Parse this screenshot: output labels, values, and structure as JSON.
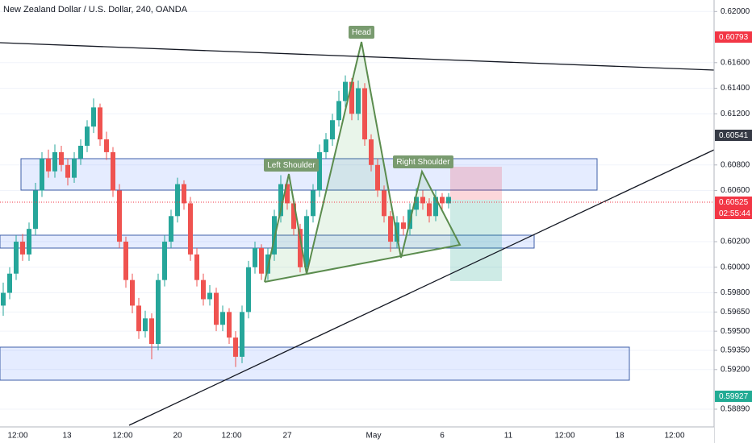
{
  "chart_data": {
    "type": "candlestick",
    "title": "New Zealand Dollar / U.S. Dollar, 240, OANDA",
    "annotations": [
      "Head",
      "Left Shoulder",
      "Right Shoulder"
    ],
    "ylim": [
      0.5872,
      0.6209
    ],
    "yticks": [
      {
        "value": 0.62,
        "label": "0.62000"
      },
      {
        "value": 0.616,
        "label": "0.61600"
      },
      {
        "value": 0.614,
        "label": "0.61400"
      },
      {
        "value": 0.612,
        "label": "0.61200"
      },
      {
        "value": 0.608,
        "label": "0.60800"
      },
      {
        "value": 0.606,
        "label": "0.60600"
      },
      {
        "value": 0.602,
        "label": "0.60200"
      },
      {
        "value": 0.6,
        "label": "0.60000"
      },
      {
        "value": 0.598,
        "label": "0.59800"
      },
      {
        "value": 0.5965,
        "label": "0.59650"
      },
      {
        "value": 0.595,
        "label": "0.59500"
      },
      {
        "value": 0.5935,
        "label": "0.59350"
      },
      {
        "value": 0.592,
        "label": "0.59200"
      },
      {
        "value": 0.5889,
        "label": "0.58890"
      }
    ],
    "grid": true,
    "price_tags": [
      {
        "label": "0.60793",
        "color": "#f23645"
      },
      {
        "label": "0.60541",
        "color": "#363a45"
      },
      {
        "label": "0.60525",
        "color": "#f23645"
      },
      {
        "label": "02:55:44",
        "color": "#f23645"
      },
      {
        "label": "0.59927",
        "color": "#22ab94"
      }
    ],
    "x_labels": [
      "12:00",
      "13",
      "12:00",
      "20",
      "12:00",
      "27",
      "May",
      "6",
      "11",
      "12:00",
      "18",
      "12:00"
    ],
    "up_color": "#26a69a",
    "down_color": "#ef5350",
    "candles": [
      [
        0.597,
        0.5988,
        0.5962,
        0.598
      ],
      [
        0.598,
        0.6,
        0.5975,
        0.5995
      ],
      [
        0.5995,
        0.6025,
        0.599,
        0.602
      ],
      [
        0.602,
        0.6026,
        0.6005,
        0.601
      ],
      [
        0.601,
        0.6035,
        0.6005,
        0.603
      ],
      [
        0.603,
        0.6066,
        0.6025,
        0.606
      ],
      [
        0.606,
        0.609,
        0.6055,
        0.6085
      ],
      [
        0.6085,
        0.6092,
        0.607,
        0.6075
      ],
      [
        0.6075,
        0.6096,
        0.607,
        0.609
      ],
      [
        0.609,
        0.6095,
        0.6075,
        0.608
      ],
      [
        0.608,
        0.6085,
        0.6064,
        0.607
      ],
      [
        0.607,
        0.609,
        0.6066,
        0.6085
      ],
      [
        0.6085,
        0.61,
        0.608,
        0.6095
      ],
      [
        0.6095,
        0.6115,
        0.609,
        0.611
      ],
      [
        0.611,
        0.6132,
        0.6105,
        0.6125
      ],
      [
        0.6125,
        0.6128,
        0.6095,
        0.61
      ],
      [
        0.61,
        0.6106,
        0.6084,
        0.609
      ],
      [
        0.609,
        0.6094,
        0.6055,
        0.606
      ],
      [
        0.606,
        0.6065,
        0.6015,
        0.602
      ],
      [
        0.602,
        0.6024,
        0.5984,
        0.599
      ],
      [
        0.599,
        0.5995,
        0.5964,
        0.597
      ],
      [
        0.597,
        0.5976,
        0.5944,
        0.595
      ],
      [
        0.595,
        0.5966,
        0.5945,
        0.596
      ],
      [
        0.596,
        0.5964,
        0.5928,
        0.594
      ],
      [
        0.594,
        0.5995,
        0.5935,
        0.599
      ],
      [
        0.599,
        0.6025,
        0.5985,
        0.602
      ],
      [
        0.602,
        0.6045,
        0.6015,
        0.604
      ],
      [
        0.604,
        0.607,
        0.6035,
        0.6065
      ],
      [
        0.6065,
        0.6068,
        0.6045,
        0.605
      ],
      [
        0.605,
        0.6055,
        0.6005,
        0.601
      ],
      [
        0.601,
        0.6015,
        0.5985,
        0.599
      ],
      [
        0.599,
        0.5995,
        0.597,
        0.5975
      ],
      [
        0.5975,
        0.5986,
        0.597,
        0.598
      ],
      [
        0.598,
        0.5984,
        0.595,
        0.5955
      ],
      [
        0.5955,
        0.597,
        0.595,
        0.5965
      ],
      [
        0.5965,
        0.5968,
        0.594,
        0.5945
      ],
      [
        0.5945,
        0.595,
        0.5922,
        0.593
      ],
      [
        0.593,
        0.597,
        0.5925,
        0.5965
      ],
      [
        0.5965,
        0.6005,
        0.596,
        0.6
      ],
      [
        0.6,
        0.602,
        0.5995,
        0.6015
      ],
      [
        0.6015,
        0.6018,
        0.599,
        0.5995
      ],
      [
        0.5995,
        0.6015,
        0.599,
        0.601
      ],
      [
        0.601,
        0.6045,
        0.6005,
        0.604
      ],
      [
        0.604,
        0.6072,
        0.6035,
        0.6065
      ],
      [
        0.6065,
        0.6068,
        0.6045,
        0.605
      ],
      [
        0.605,
        0.6054,
        0.6025,
        0.603
      ],
      [
        0.603,
        0.6034,
        0.5996,
        0.6
      ],
      [
        0.6,
        0.6045,
        0.5996,
        0.604
      ],
      [
        0.604,
        0.6065,
        0.6035,
        0.606
      ],
      [
        0.606,
        0.6096,
        0.6055,
        0.609
      ],
      [
        0.609,
        0.6105,
        0.6085,
        0.61
      ],
      [
        0.61,
        0.612,
        0.6095,
        0.6115
      ],
      [
        0.6115,
        0.6138,
        0.611,
        0.613
      ],
      [
        0.613,
        0.615,
        0.6125,
        0.6145
      ],
      [
        0.6145,
        0.6148,
        0.6115,
        0.612
      ],
      [
        0.612,
        0.6146,
        0.6115,
        0.614
      ],
      [
        0.614,
        0.6144,
        0.6095,
        0.61
      ],
      [
        0.61,
        0.6104,
        0.6075,
        0.608
      ],
      [
        0.608,
        0.6085,
        0.6055,
        0.606
      ],
      [
        0.606,
        0.6064,
        0.6035,
        0.604
      ],
      [
        0.604,
        0.6044,
        0.6012,
        0.602
      ],
      [
        0.602,
        0.604,
        0.6015,
        0.6035
      ],
      [
        0.6035,
        0.604,
        0.6025,
        0.603
      ],
      [
        0.603,
        0.605,
        0.6025,
        0.6045
      ],
      [
        0.6045,
        0.6062,
        0.604,
        0.6055
      ],
      [
        0.6055,
        0.606,
        0.6045,
        0.605
      ],
      [
        0.605,
        0.6054,
        0.6035,
        0.604
      ],
      [
        0.604,
        0.606,
        0.6036,
        0.6055
      ],
      [
        0.6055,
        0.6058,
        0.6044,
        0.605
      ],
      [
        0.605,
        0.6058,
        0.6046,
        0.6055
      ]
    ]
  }
}
